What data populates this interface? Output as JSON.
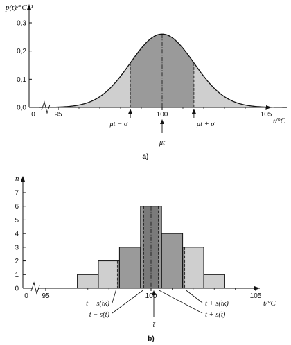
{
  "chart_data": [
    {
      "type": "area",
      "panel_label": "a)",
      "ylabel": "p(t)/°C⁻¹",
      "xlabel": "t/°C",
      "x_ticks": [
        "0",
        "95",
        "100",
        "105"
      ],
      "y_ticks": [
        "0,0",
        "0,1",
        "0,2",
        "0,3"
      ],
      "xlim": [
        94,
        106
      ],
      "ylim": [
        0,
        0.35
      ],
      "mean": 100,
      "sigma": 1.53,
      "peak": 0.26,
      "annotations": {
        "left": "μt − σ",
        "right": "μt + σ",
        "center": "μt"
      },
      "colors": {
        "outer_fill": "#cfcfcf",
        "inner_fill": "#9a9a9a",
        "line": "#111111"
      }
    },
    {
      "type": "bar",
      "panel_label": "b)",
      "ylabel": "n",
      "xlabel": "t/°C",
      "x_ticks": [
        "0",
        "95",
        "100",
        "105"
      ],
      "y_ticks": [
        "0",
        "1",
        "2",
        "3",
        "4",
        "5",
        "6",
        "7"
      ],
      "xlim": [
        94,
        106
      ],
      "ylim": [
        0,
        8
      ],
      "bin_width": 1,
      "bins": [
        {
          "x0": 96.5,
          "x1": 97.5,
          "n": 1
        },
        {
          "x0": 97.5,
          "x1": 98.5,
          "n": 2
        },
        {
          "x0": 98.5,
          "x1": 99.5,
          "n": 3
        },
        {
          "x0": 99.5,
          "x1": 100.5,
          "n": 6
        },
        {
          "x0": 100.5,
          "x1": 101.5,
          "n": 4
        },
        {
          "x0": 101.5,
          "x1": 102.5,
          "n": 3
        },
        {
          "x0": 102.5,
          "x1": 103.5,
          "n": 1
        }
      ],
      "mean": 100,
      "s_tk": 1.6,
      "s_tbar": 0.35,
      "annotations": {
        "left_outer": "t̄ − s(tk)",
        "left_inner": "t̄ − s(t̄)",
        "right_outer": "t̄ + s(tk)",
        "right_inner": "t̄ + s(t̄)",
        "center": "t̄"
      },
      "colors": {
        "outer_fill": "#cfcfcf",
        "mid_fill": "#9a9a9a",
        "inner_fill": "#7a7a7a",
        "line": "#111111"
      }
    }
  ]
}
